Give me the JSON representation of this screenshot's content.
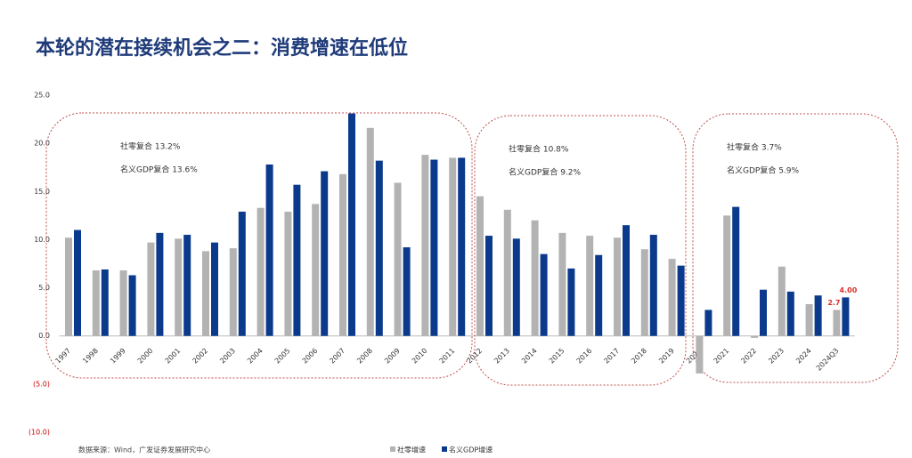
{
  "chart_data": {
    "type": "bar",
    "title": "本轮的潜在接续机会之二：消费增速在低位",
    "categories": [
      "1997",
      "1998",
      "1999",
      "2000",
      "2001",
      "2002",
      "2003",
      "2004",
      "2005",
      "2006",
      "2007",
      "2008",
      "2009",
      "2010",
      "2011",
      "2012",
      "2013",
      "2014",
      "2015",
      "2016",
      "2017",
      "2018",
      "2019",
      "2020",
      "2021",
      "2022",
      "2023",
      "2024",
      "2024Q3"
    ],
    "series": [
      {
        "name": "社零增速",
        "color": "#b3b3b3",
        "values": [
          10.2,
          6.8,
          6.8,
          9.7,
          10.1,
          8.8,
          9.1,
          13.3,
          12.9,
          13.7,
          16.8,
          21.6,
          15.9,
          18.8,
          18.5,
          14.5,
          13.1,
          12.0,
          10.7,
          10.4,
          10.2,
          9.0,
          8.0,
          -3.9,
          12.5,
          -0.2,
          7.2,
          3.3,
          2.7
        ],
        "value_labels": [
          null,
          null,
          null,
          null,
          null,
          null,
          null,
          null,
          null,
          null,
          null,
          null,
          null,
          null,
          null,
          null,
          null,
          null,
          null,
          null,
          null,
          null,
          null,
          null,
          null,
          null,
          null,
          null,
          "2.7"
        ]
      },
      {
        "name": "名义GDP增速",
        "color": "#0b3a8c",
        "values": [
          11.0,
          6.9,
          6.3,
          10.7,
          10.5,
          9.7,
          12.9,
          17.8,
          15.7,
          17.1,
          23.1,
          18.2,
          9.2,
          18.3,
          18.5,
          10.4,
          10.1,
          8.5,
          7.0,
          8.4,
          11.5,
          10.5,
          7.3,
          2.7,
          13.4,
          4.8,
          4.6,
          4.2,
          4.0
        ],
        "value_labels": [
          null,
          null,
          null,
          null,
          null,
          null,
          null,
          null,
          null,
          null,
          null,
          null,
          null,
          null,
          null,
          null,
          null,
          null,
          null,
          null,
          null,
          null,
          null,
          null,
          null,
          null,
          null,
          null,
          "4.00"
        ]
      }
    ],
    "ylim": [
      -10,
      25
    ],
    "yticks": [
      {
        "value": -10,
        "label": "(10.0)"
      },
      {
        "value": -5,
        "label": "(5.0)"
      },
      {
        "value": 0,
        "label": "0.0"
      },
      {
        "value": 5,
        "label": "5.0"
      },
      {
        "value": 10,
        "label": "10.0"
      },
      {
        "value": 15,
        "label": "15.0"
      },
      {
        "value": 20,
        "label": "20.0"
      },
      {
        "value": 25,
        "label": "25.0"
      }
    ],
    "grid": false,
    "annotations": [
      {
        "lines": [
          "社零复合 13.2%",
          "名义GDP复合 13.6%"
        ]
      },
      {
        "lines": [
          "社零复合 10.8%",
          "名义GDP复合 9.2%"
        ]
      },
      {
        "lines": [
          "社零复合 3.7%",
          "名义GDP复合 5.9%"
        ]
      }
    ],
    "source": "数据来源：Wind，广发证券发展研究中心"
  }
}
